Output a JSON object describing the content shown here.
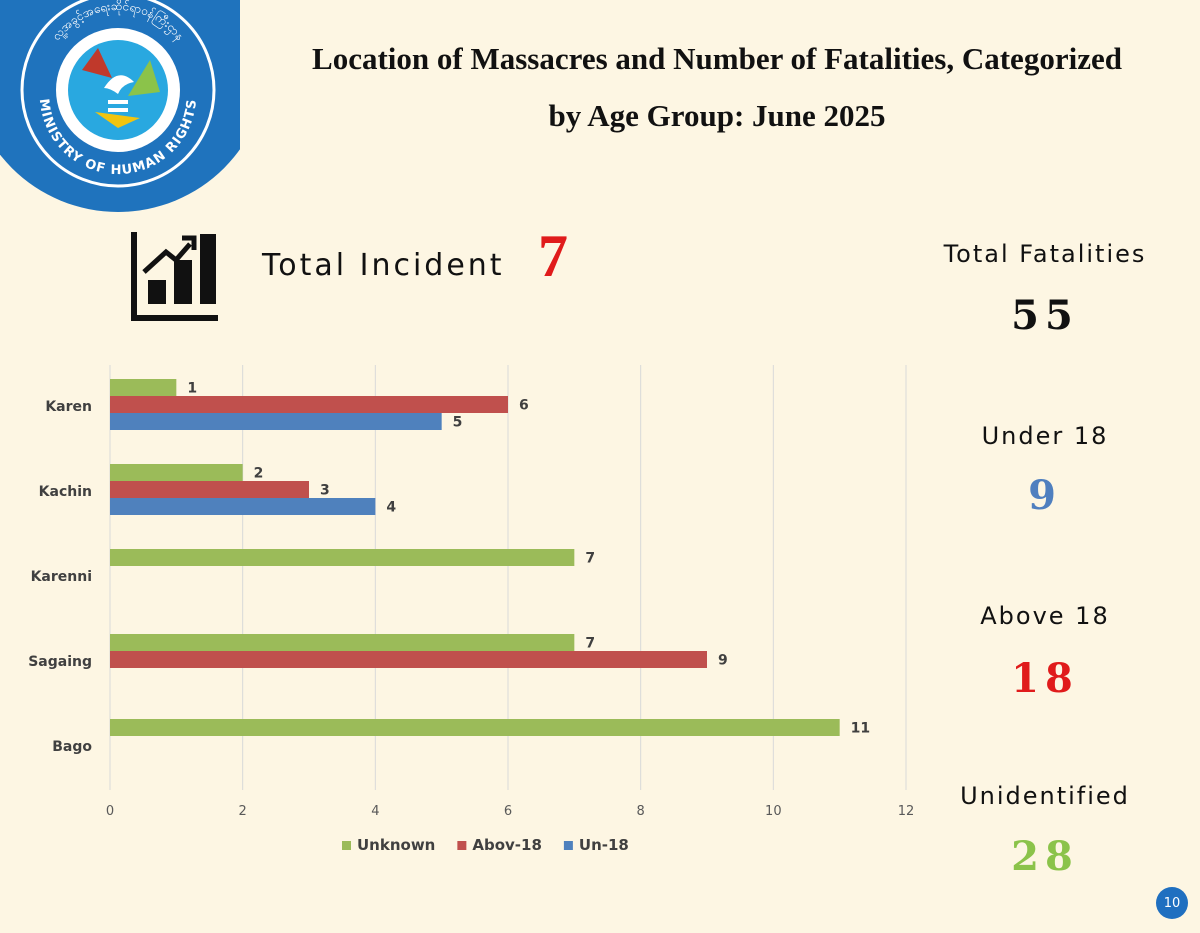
{
  "logo": {
    "name": "MINISTRY OF HUMAN RIGHTS",
    "script_text": "လူ့အခွင့်အရေးဆိုင်ရာဝန်ကြီးဌာန"
  },
  "title": {
    "line1": "Location of Massacres and Number of Fatalities, Categorized",
    "line2": "by Age Group: June 2025"
  },
  "incident": {
    "label": "Total Incident",
    "value": "7"
  },
  "stats": {
    "total": {
      "label": "Total Fatalities",
      "value": "55",
      "color": "#111111"
    },
    "under18": {
      "label": "Under 18",
      "value": "9",
      "color": "#4f7fbf"
    },
    "above18": {
      "label": "Above 18",
      "value": "18",
      "color": "#e01b1b"
    },
    "unidentified": {
      "label": "Unidentified",
      "value": "28",
      "color": "#8bc34a"
    }
  },
  "chart_data": {
    "type": "bar",
    "orientation": "horizontal",
    "categories": [
      "Karen",
      "Kachin",
      "Karenni",
      "Sagaing",
      "Bago"
    ],
    "series": [
      {
        "name": "Unknown",
        "color": "#9bbb59",
        "values": [
          1,
          2,
          7,
          7,
          11
        ]
      },
      {
        "name": "Abov-18",
        "color": "#c0504d",
        "values": [
          6,
          3,
          null,
          9,
          null
        ]
      },
      {
        "name": "Un-18",
        "color": "#4f81bd",
        "values": [
          5,
          4,
          null,
          null,
          null
        ]
      }
    ],
    "xlim": [
      0,
      12
    ],
    "xticks": [
      0,
      2,
      4,
      6,
      8,
      10,
      12
    ],
    "grid": true,
    "legend": "bottom"
  },
  "page_number": "10"
}
